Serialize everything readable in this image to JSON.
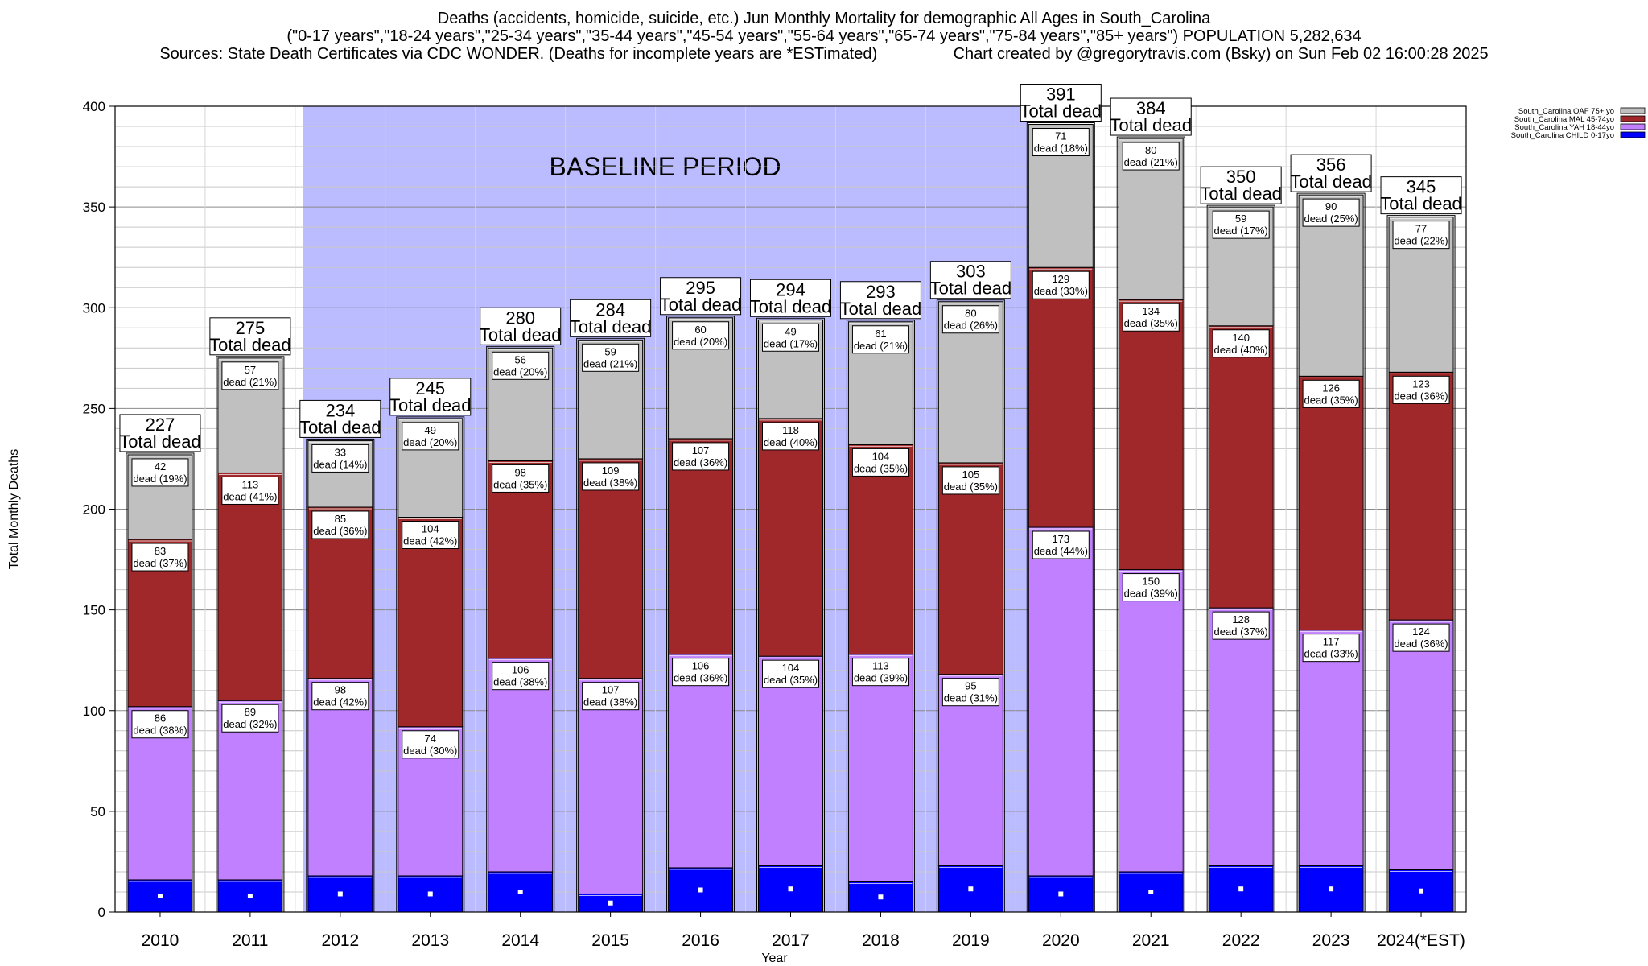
{
  "header": {
    "line1": "Deaths (accidents, homicide, suicide, etc.) Jun Monthly Mortality for demographic All Ages in South_Carolina",
    "line2": "(\"0-17 years\",\"18-24 years\",\"25-34 years\",\"35-44 years\",\"45-54 years\",\"55-64 years\",\"65-74 years\",\"75-84 years\",\"85+ years\") POPULATION 5,282,634",
    "line3_left": "Sources: State Death Certificates via CDC WONDER. (Deaths for incomplete years are *ESTimated)",
    "line3_right": "Chart created by @gregorytravis.com (Bsky) on Sun Feb 02 16:00:28 2025"
  },
  "chart_data": {
    "type": "bar",
    "stacked": true,
    "xlabel": "Year",
    "ylabel": "Total Monthly Deaths",
    "ylim": [
      0,
      400
    ],
    "yticks": [
      0,
      50,
      100,
      150,
      200,
      250,
      300,
      350,
      400
    ],
    "grid": true,
    "legend_placement": "top-right",
    "baseline_label": "BASELINE PERIOD",
    "baseline_range": [
      "2012",
      "2019"
    ],
    "baseline_color": "#bbbbff",
    "total_suffix": "Total dead",
    "categories": [
      "2010",
      "2011",
      "2012",
      "2013",
      "2014",
      "2015",
      "2016",
      "2017",
      "2018",
      "2019",
      "2020",
      "2021",
      "2022",
      "2023",
      "2024(*EST)"
    ],
    "totals": [
      227,
      275,
      234,
      245,
      280,
      284,
      295,
      294,
      293,
      303,
      391,
      384,
      350,
      356,
      345
    ],
    "series": [
      {
        "name": "South_Carolina CHILD 0-17yo",
        "color": "#0000ff",
        "values": [
          16,
          16,
          18,
          18,
          20,
          9,
          22,
          23,
          15,
          23,
          18,
          20,
          23,
          23,
          21
        ],
        "labels": []
      },
      {
        "name": "South_Carolina YAH 18-44yo",
        "color": "#c080ff",
        "values": [
          86,
          89,
          98,
          74,
          106,
          107,
          106,
          104,
          113,
          95,
          173,
          150,
          128,
          117,
          124
        ],
        "labels": [
          "dead (38%)",
          "dead (32%)",
          "dead (42%)",
          "dead (30%)",
          "dead (38%)",
          "dead (38%)",
          "dead (36%)",
          "dead (35%)",
          "dead (39%)",
          "dead (31%)",
          "dead (44%)",
          "dead (39%)",
          "dead (37%)",
          "dead (33%)",
          "dead (36%)"
        ]
      },
      {
        "name": "South_Carolina MAL 45-74yo",
        "color": "#a0282a",
        "values": [
          83,
          113,
          85,
          104,
          98,
          109,
          107,
          118,
          104,
          105,
          129,
          134,
          140,
          126,
          123
        ],
        "labels": [
          "dead (37%)",
          "dead (41%)",
          "dead (36%)",
          "dead (42%)",
          "dead (35%)",
          "dead (38%)",
          "dead (36%)",
          "dead (40%)",
          "dead (35%)",
          "dead (35%)",
          "dead (33%)",
          "dead (35%)",
          "dead (40%)",
          "dead (35%)",
          "dead (36%)"
        ]
      },
      {
        "name": "South_Carolina OAF 75+ yo",
        "color": "#c0c0c0",
        "values": [
          42,
          57,
          33,
          49,
          56,
          59,
          60,
          49,
          61,
          80,
          71,
          80,
          59,
          90,
          77
        ],
        "labels": [
          "dead (19%)",
          "dead (21%)",
          "dead (14%)",
          "dead (20%)",
          "dead (20%)",
          "dead (21%)",
          "dead (20%)",
          "dead (17%)",
          "dead (21%)",
          "dead (26%)",
          "dead (18%)",
          "dead (21%)",
          "dead (17%)",
          "dead (25%)",
          "dead (22%)"
        ]
      }
    ],
    "legend_order": [
      3,
      2,
      1,
      0
    ]
  }
}
